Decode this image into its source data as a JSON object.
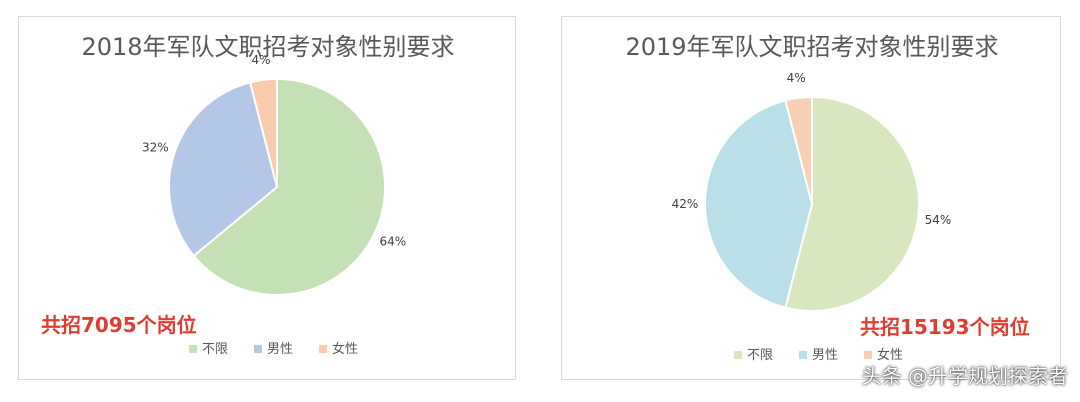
{
  "chart_data": [
    {
      "type": "pie",
      "title": "2018年军队文职招考对象性别要求",
      "categories": [
        "不限",
        "男性",
        "女性"
      ],
      "values": [
        64,
        32,
        4
      ],
      "labels": [
        "64%",
        "32%",
        "4%"
      ],
      "colors": [
        "#c5e0b4",
        "#b4c7e7",
        "#f8cbad"
      ],
      "legend": "bottom",
      "note": "共招7095个岗位"
    },
    {
      "type": "pie",
      "title": "2019年军队文职招考对象性别要求",
      "categories": [
        "不限",
        "男性",
        "女性"
      ],
      "values": [
        54,
        42,
        4
      ],
      "labels": [
        "54%",
        "42%",
        "4%"
      ],
      "colors": [
        "#d9e7bf",
        "#b9dfe8",
        "#f8cfb3"
      ],
      "legend": "bottom",
      "note": "共招15193个岗位"
    }
  ],
  "watermark": "头条 @升学规划探索者"
}
